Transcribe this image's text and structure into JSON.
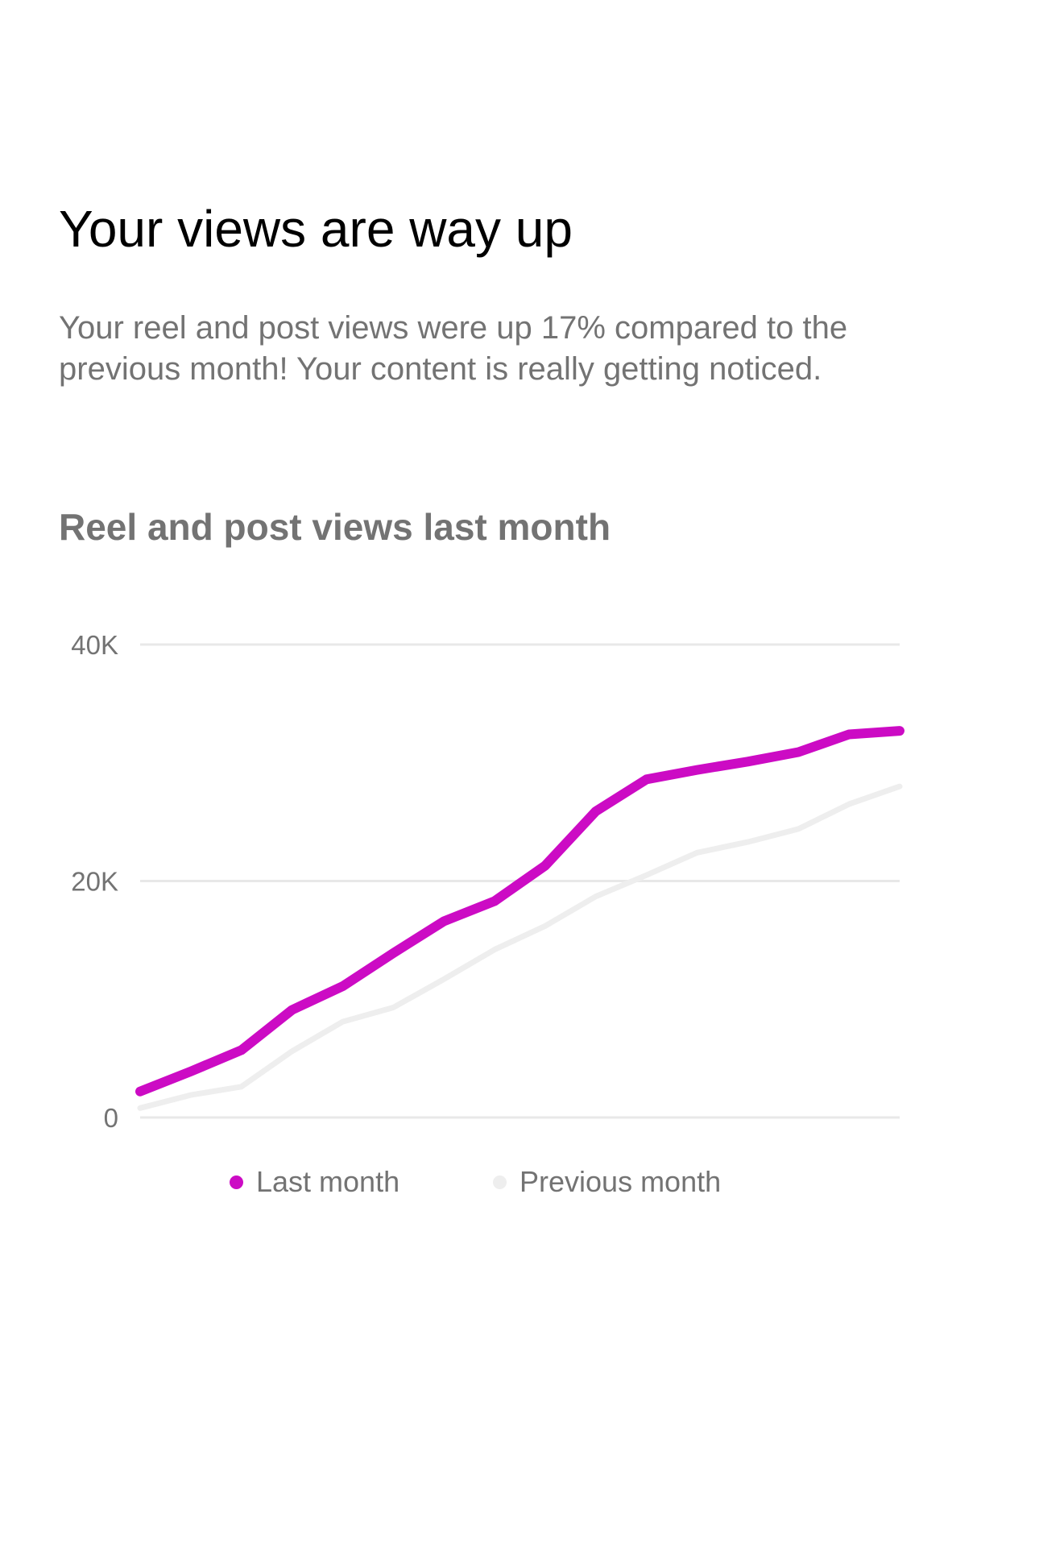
{
  "headline": "Your views are way up",
  "body": "Your reel and post views were up 17% compared to the previous month! Your content is really getting noticed.",
  "chart_data": {
    "type": "line",
    "title": "Reel and post views last month",
    "xlabel": "",
    "ylabel": "",
    "ylim": [
      0,
      40000
    ],
    "yticks": [
      {
        "value": 0,
        "label": "0"
      },
      {
        "value": 20000,
        "label": "20K"
      },
      {
        "value": 40000,
        "label": "40K"
      }
    ],
    "grid": true,
    "legend_position": "bottom",
    "x": [
      1,
      2,
      3,
      4,
      5,
      6,
      7,
      8,
      9,
      10,
      11,
      12,
      13,
      14,
      15,
      16
    ],
    "series": [
      {
        "name": "Last month",
        "color": "#CC0BC4",
        "values": [
          2200,
          3900,
          5700,
          9100,
          11100,
          13900,
          16600,
          18300,
          21300,
          25900,
          28600,
          29400,
          30100,
          30900,
          32400,
          32700
        ]
      },
      {
        "name": "Previous month",
        "color": "#EEEEEE",
        "values": [
          800,
          1900,
          2600,
          5600,
          8100,
          9300,
          11700,
          14200,
          16200,
          18700,
          20500,
          22400,
          23300,
          24400,
          26500,
          28000
        ]
      }
    ]
  }
}
